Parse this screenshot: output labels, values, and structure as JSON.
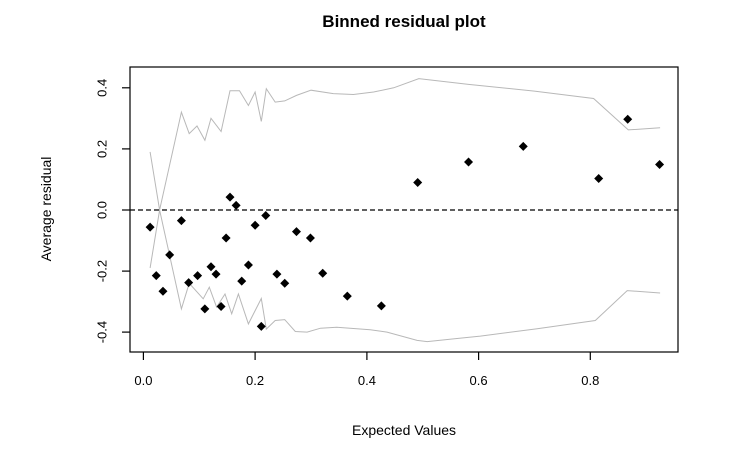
{
  "chart_data": {
    "type": "scatter",
    "title": "Binned residual plot",
    "xlabel": "Expected Values",
    "ylabel": "Average residual",
    "xlim": [
      -0.024,
      0.957
    ],
    "ylim": [
      -0.465,
      0.468
    ],
    "grid": false,
    "x_ticks": {
      "values": [
        0.0,
        0.2,
        0.4,
        0.6,
        0.8
      ],
      "labels": [
        "0.0",
        "0.2",
        "0.4",
        "0.6",
        "0.8"
      ]
    },
    "y_ticks": {
      "values": [
        -0.4,
        -0.2,
        0.0,
        0.2,
        0.4
      ],
      "labels": [
        "-0.4",
        "-0.2",
        "0.0",
        "0.2",
        "0.4"
      ]
    },
    "zero_line": {
      "y": 0.0,
      "style": "dashed",
      "color": "#000000"
    },
    "point_shape": "diamond",
    "point_color": "#000000",
    "points": [
      [
        0.012,
        -0.056
      ],
      [
        0.023,
        -0.215
      ],
      [
        0.035,
        -0.266
      ],
      [
        0.047,
        -0.147
      ],
      [
        0.068,
        -0.035
      ],
      [
        0.081,
        -0.238
      ],
      [
        0.097,
        -0.215
      ],
      [
        0.11,
        -0.324
      ],
      [
        0.121,
        -0.186
      ],
      [
        0.13,
        -0.21
      ],
      [
        0.139,
        -0.316
      ],
      [
        0.148,
        -0.092
      ],
      [
        0.155,
        0.042
      ],
      [
        0.166,
        0.015
      ],
      [
        0.176,
        -0.233
      ],
      [
        0.188,
        -0.18
      ],
      [
        0.2,
        -0.05
      ],
      [
        0.211,
        -0.381
      ],
      [
        0.219,
        -0.018
      ],
      [
        0.239,
        -0.21
      ],
      [
        0.253,
        -0.24
      ],
      [
        0.274,
        -0.071
      ],
      [
        0.299,
        -0.092
      ],
      [
        0.321,
        -0.207
      ],
      [
        0.365,
        -0.282
      ],
      [
        0.426,
        -0.314
      ],
      [
        0.491,
        0.09
      ],
      [
        0.582,
        0.157
      ],
      [
        0.68,
        0.208
      ],
      [
        0.815,
        0.103
      ],
      [
        0.867,
        0.297
      ],
      [
        0.924,
        0.149
      ]
    ],
    "bands": {
      "color": "#b8b8b8",
      "upper": [
        [
          0.012,
          0.19
        ],
        [
          0.029,
          0.0
        ],
        [
          0.068,
          0.32
        ],
        [
          0.082,
          0.25
        ],
        [
          0.096,
          0.275
        ],
        [
          0.11,
          0.228
        ],
        [
          0.121,
          0.3
        ],
        [
          0.139,
          0.257
        ],
        [
          0.155,
          0.39
        ],
        [
          0.172,
          0.39
        ],
        [
          0.188,
          0.342
        ],
        [
          0.2,
          0.386
        ],
        [
          0.211,
          0.29
        ],
        [
          0.22,
          0.397
        ],
        [
          0.236,
          0.353
        ],
        [
          0.253,
          0.357
        ],
        [
          0.274,
          0.375
        ],
        [
          0.3,
          0.392
        ],
        [
          0.34,
          0.381
        ],
        [
          0.376,
          0.378
        ],
        [
          0.412,
          0.386
        ],
        [
          0.448,
          0.4
        ],
        [
          0.493,
          0.43
        ],
        [
          0.582,
          0.411
        ],
        [
          0.7,
          0.389
        ],
        [
          0.806,
          0.365
        ],
        [
          0.868,
          0.262
        ],
        [
          0.925,
          0.269
        ]
      ],
      "lower": [
        [
          0.012,
          -0.19
        ],
        [
          0.029,
          0.0
        ],
        [
          0.068,
          -0.324
        ],
        [
          0.082,
          -0.24
        ],
        [
          0.107,
          -0.291
        ],
        [
          0.118,
          -0.253
        ],
        [
          0.131,
          -0.318
        ],
        [
          0.146,
          -0.275
        ],
        [
          0.158,
          -0.34
        ],
        [
          0.17,
          -0.275
        ],
        [
          0.188,
          -0.373
        ],
        [
          0.211,
          -0.29
        ],
        [
          0.22,
          -0.39
        ],
        [
          0.236,
          -0.362
        ],
        [
          0.253,
          -0.359
        ],
        [
          0.272,
          -0.398
        ],
        [
          0.293,
          -0.4
        ],
        [
          0.317,
          -0.387
        ],
        [
          0.346,
          -0.384
        ],
        [
          0.406,
          -0.392
        ],
        [
          0.436,
          -0.4
        ],
        [
          0.49,
          -0.427
        ],
        [
          0.508,
          -0.431
        ],
        [
          0.555,
          -0.422
        ],
        [
          0.603,
          -0.413
        ],
        [
          0.705,
          -0.389
        ],
        [
          0.809,
          -0.362
        ],
        [
          0.866,
          -0.264
        ],
        [
          0.925,
          -0.272
        ]
      ]
    },
    "colors": {
      "axis": "#000000",
      "background": "#ffffff",
      "band_line": "#b8b8b8",
      "points": "#000000"
    }
  }
}
